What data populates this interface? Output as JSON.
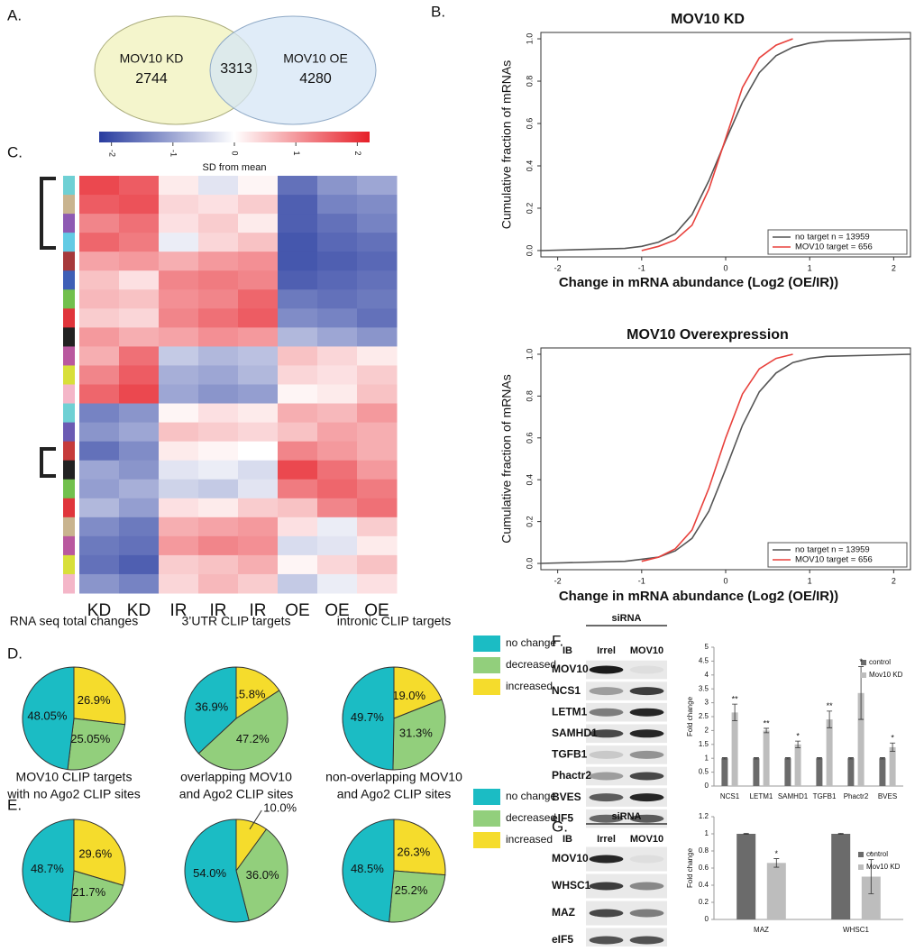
{
  "chart_data": [
    {
      "type": "venn",
      "panel": "A.",
      "sets": [
        "MOV10 KD",
        "MOV10 OE"
      ],
      "values": [
        2744,
        3313,
        4280
      ],
      "colors": [
        "#f3f4c6",
        "#d5e5f5"
      ]
    },
    {
      "type": "line",
      "panel": "B.",
      "title": "MOV10 KD",
      "x_label": "Change in mRNA abundance (Log2 (OE/IR))",
      "y_label": "Cumulative fraction of mRNAs",
      "x": [
        -2.2,
        -1.2,
        -1,
        -0.8,
        -0.6,
        -0.4,
        -0.2,
        0,
        0.2,
        0.4,
        0.6,
        0.8,
        1,
        1.2,
        2.2
      ],
      "series": [
        {
          "name": "no target n = 13959",
          "color": "#555555",
          "values": [
            0,
            0.01,
            0.02,
            0.04,
            0.08,
            0.17,
            0.33,
            0.52,
            0.7,
            0.84,
            0.92,
            0.96,
            0.98,
            0.99,
            1
          ]
        },
        {
          "name": "MOV10 target = 656",
          "color": "#e8413c",
          "values": [
            null,
            null,
            0,
            0.02,
            0.05,
            0.12,
            0.29,
            0.53,
            0.77,
            0.91,
            0.97,
            1,
            null,
            null,
            null
          ]
        }
      ],
      "xlim": [
        -2.2,
        2.2
      ],
      "xticks": [
        -2,
        -1,
        0,
        1,
        2
      ],
      "ylim": [
        -0.03,
        1.03
      ],
      "yticks": [
        {
          "value": 0,
          "label": "0.0"
        },
        0.2,
        0.4,
        0.6,
        0.8,
        {
          "value": 1,
          "label": "1.0"
        }
      ],
      "legend": "lower right"
    },
    {
      "type": "line",
      "title": "MOV10 Overexpression",
      "x_label": "Change in mRNA abundance (Log2 (OE/IR))",
      "y_label": "Cumulative fraction of mRNAs",
      "x": [
        -2.2,
        -1.2,
        -1,
        -0.8,
        -0.6,
        -0.4,
        -0.2,
        0,
        0.2,
        0.4,
        0.6,
        0.8,
        1,
        1.2,
        2.2
      ],
      "series": [
        {
          "name": "no target n = 13959",
          "color": "#555555",
          "values": [
            0,
            0.01,
            0.02,
            0.03,
            0.06,
            0.12,
            0.25,
            0.45,
            0.66,
            0.82,
            0.91,
            0.96,
            0.98,
            0.99,
            1
          ]
        },
        {
          "name": "MOV10 target = 656",
          "color": "#e8413c",
          "values": [
            null,
            null,
            0.01,
            0.03,
            0.07,
            0.16,
            0.36,
            0.6,
            0.81,
            0.93,
            0.98,
            1,
            null,
            null,
            null
          ]
        }
      ],
      "xlim": [
        -2.2,
        2.2
      ],
      "xticks": [
        -2,
        -1,
        0,
        1,
        2
      ],
      "ylim": [
        -0.03,
        1.03
      ],
      "yticks": [
        {
          "value": 0,
          "label": "0.0"
        },
        0.2,
        0.4,
        0.6,
        0.8,
        {
          "value": 1,
          "label": "1.0"
        }
      ],
      "legend": "lower right"
    },
    {
      "type": "heatmap",
      "panel": "C.",
      "colorbar_label": "SD from mean",
      "clim": [
        -2.2,
        2.2
      ],
      "cticks": [
        -2,
        -1,
        0,
        1,
        2
      ],
      "columns": [
        "KD",
        "KD",
        "IR",
        "IR",
        "IR",
        "OE",
        "OE",
        "OE"
      ],
      "values": [
        [
          1.8,
          1.6,
          0.2,
          -0.3,
          0.1,
          -1.6,
          -1.2,
          -1.0
        ],
        [
          1.6,
          1.7,
          0.4,
          0.3,
          0.5,
          -1.8,
          -1.4,
          -1.3
        ],
        [
          1.2,
          1.4,
          0.3,
          0.5,
          0.2,
          -1.8,
          -1.6,
          -1.4
        ],
        [
          1.5,
          1.3,
          -0.2,
          0.4,
          0.6,
          -1.9,
          -1.7,
          -1.6
        ],
        [
          0.9,
          1.0,
          0.8,
          1.0,
          1.1,
          -1.9,
          -1.8,
          -1.7
        ],
        [
          0.6,
          0.3,
          1.2,
          1.3,
          1.2,
          -1.8,
          -1.7,
          -1.6
        ],
        [
          0.7,
          0.6,
          1.1,
          1.2,
          1.5,
          -1.5,
          -1.6,
          -1.5
        ],
        [
          0.5,
          0.4,
          1.2,
          1.4,
          1.6,
          -1.3,
          -1.4,
          -1.6
        ],
        [
          1.0,
          0.8,
          0.9,
          1.1,
          1.0,
          -0.8,
          -1.0,
          -1.2
        ],
        [
          0.8,
          1.4,
          -0.6,
          -0.8,
          -0.7,
          0.6,
          0.4,
          0.2
        ],
        [
          1.2,
          1.6,
          -0.9,
          -1.0,
          -0.8,
          0.4,
          0.3,
          0.5
        ],
        [
          1.5,
          1.8,
          -1.0,
          -1.2,
          -1.1,
          0.1,
          0.2,
          0.6
        ],
        [
          -1.4,
          -1.2,
          0.1,
          0.3,
          0.2,
          0.8,
          0.7,
          1.0
        ],
        [
          -1.2,
          -1.0,
          0.6,
          0.5,
          0.4,
          0.6,
          0.9,
          0.8
        ],
        [
          -1.6,
          -1.3,
          0.2,
          0.1,
          0.0,
          1.2,
          1.0,
          0.8
        ],
        [
          -1.0,
          -1.2,
          -0.3,
          -0.2,
          -0.4,
          1.8,
          1.4,
          1.0
        ],
        [
          -1.1,
          -0.9,
          -0.5,
          -0.6,
          -0.3,
          1.3,
          1.5,
          1.3
        ],
        [
          -0.8,
          -1.1,
          0.3,
          0.2,
          0.5,
          0.6,
          1.2,
          1.4
        ],
        [
          -1.3,
          -1.5,
          0.8,
          0.9,
          1.0,
          0.3,
          -0.2,
          0.5
        ],
        [
          -1.5,
          -1.6,
          1.0,
          1.2,
          1.1,
          -0.4,
          -0.3,
          0.2
        ],
        [
          -1.6,
          -1.8,
          0.5,
          0.6,
          0.8,
          0.1,
          0.4,
          0.6
        ],
        [
          -1.2,
          -1.4,
          0.4,
          0.7,
          0.5,
          -0.6,
          -0.2,
          0.3
        ]
      ]
    },
    {
      "type": "pie",
      "panel": "D.",
      "title": [
        "RNA seq total changes"
      ],
      "categories": [
        "no change",
        "decreased",
        "increased"
      ],
      "colors": [
        "#1bbcc4",
        "#92cf7c",
        "#f5dc2c"
      ],
      "values": [
        48.05,
        25.05,
        26.9
      ],
      "value_labels": [
        "48.05%",
        "25.05%",
        "26.9%"
      ]
    },
    {
      "type": "pie",
      "title": [
        "3’UTR CLIP targets"
      ],
      "categories": [
        "no change",
        "decreased",
        "increased"
      ],
      "colors": [
        "#1bbcc4",
        "#92cf7c",
        "#f5dc2c"
      ],
      "values": [
        36.9,
        47.2,
        15.8
      ],
      "value_labels": [
        "36.9%",
        "47.2%",
        "15.8%"
      ]
    },
    {
      "type": "pie",
      "title": [
        "intronic CLIP targets"
      ],
      "categories": [
        "no change",
        "decreased",
        "increased"
      ],
      "colors": [
        "#1bbcc4",
        "#92cf7c",
        "#f5dc2c"
      ],
      "values": [
        49.7,
        31.3,
        19.0
      ],
      "value_labels": [
        "49.7%",
        "31.3%",
        "19.0%"
      ],
      "legend": "right"
    },
    {
      "type": "pie",
      "panel": "E.",
      "title": [
        "MOV10 CLIP targets",
        "with no Ago2 CLIP sites"
      ],
      "categories": [
        "no change",
        "decreased",
        "increased"
      ],
      "colors": [
        "#1bbcc4",
        "#92cf7c",
        "#f5dc2c"
      ],
      "values": [
        48.7,
        21.7,
        29.6
      ],
      "value_labels": [
        "48.7%",
        "21.7%",
        "29.6%"
      ]
    },
    {
      "type": "pie",
      "title": [
        "overlapping MOV10",
        "and Ago2 CLIP sites"
      ],
      "categories": [
        "no change",
        "decreased",
        "increased"
      ],
      "colors": [
        "#1bbcc4",
        "#92cf7c",
        "#f5dc2c"
      ],
      "values": [
        54.0,
        36.0,
        10.0
      ],
      "value_labels": [
        "54.0%",
        "36.0%",
        "10.0%"
      ]
    },
    {
      "type": "pie",
      "title": [
        "non-overlapping MOV10",
        "and Ago2 CLIP sites"
      ],
      "categories": [
        "no change",
        "decreased",
        "increased"
      ],
      "colors": [
        "#1bbcc4",
        "#92cf7c",
        "#f5dc2c"
      ],
      "values": [
        48.5,
        25.2,
        26.3
      ],
      "value_labels": [
        "48.5%",
        "25.2%",
        "26.3%"
      ],
      "legend": "right"
    },
    {
      "type": "blot",
      "panel": "F.",
      "header": "siRNA",
      "ib": "IB",
      "lanes": [
        "Irrel",
        "MOV10"
      ],
      "rows": [
        "MOV10",
        "NCS1",
        "LETM1",
        "SAMHD1",
        "TGFB1",
        "Phactr2",
        "BVES",
        "eIF5"
      ]
    },
    {
      "type": "bar",
      "y_label": "Fold change",
      "categories": [
        "NCS1",
        "LETM1",
        "SAMHD1",
        "TGFB1",
        "Phactr2",
        "BVES"
      ],
      "series": [
        {
          "name": "control",
          "color": "#6b6b6b",
          "values": [
            1,
            1,
            1,
            1,
            1,
            1
          ],
          "errors": [
            0.02,
            0.02,
            0.02,
            0.02,
            0.02,
            0.02
          ]
        },
        {
          "name": "Mov10 KD",
          "color": "#bdbdbd",
          "values": [
            2.65,
            2.0,
            1.5,
            2.4,
            3.35,
            1.4
          ],
          "errors": [
            0.3,
            0.08,
            0.12,
            0.3,
            0.95,
            0.15
          ],
          "annotations": [
            "**",
            "**",
            "*",
            "**",
            "*",
            "*"
          ]
        }
      ],
      "ylim": [
        0,
        5
      ],
      "yticks": [
        0,
        0.5,
        1,
        1.5,
        2,
        2.5,
        3,
        3.5,
        4,
        4.5,
        5
      ],
      "legend": "upper right"
    },
    {
      "type": "blot",
      "panel": "G.",
      "header": "siRNA",
      "ib": "IB",
      "lanes": [
        "Irrel",
        "MOV10"
      ],
      "rows": [
        "MOV10",
        "WHSC1",
        "MAZ",
        "eIF5"
      ]
    },
    {
      "type": "bar",
      "y_label": "Fold change",
      "categories": [
        "MAZ",
        "WHSC1"
      ],
      "series": [
        {
          "name": "control",
          "color": "#6b6b6b",
          "values": [
            1,
            1
          ],
          "errors": [
            0.005,
            0.005
          ]
        },
        {
          "name": "Mov10 KD",
          "color": "#bdbdbd",
          "values": [
            0.66,
            0.5
          ],
          "errors": [
            0.05,
            0.2
          ],
          "annotations": [
            "*",
            "*"
          ]
        }
      ],
      "ylim": [
        0,
        1.2
      ],
      "yticks": [
        0,
        0.2,
        0.4,
        0.6,
        0.8,
        1,
        1.2
      ],
      "legend": "upper right"
    }
  ]
}
